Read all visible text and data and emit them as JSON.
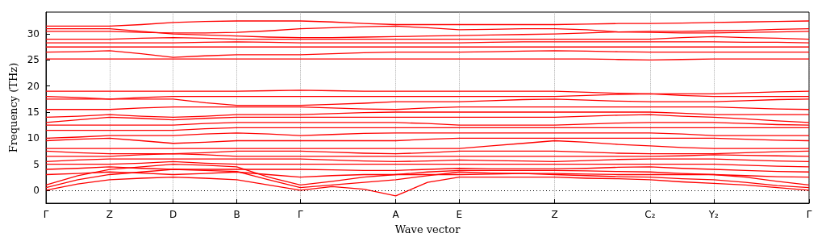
{
  "chart_data": {
    "type": "line",
    "xlabel": "Wave vector",
    "ylabel": "Frequency (THz)",
    "categories": [
      "Γ",
      null,
      "Z",
      null,
      "D",
      null,
      "B",
      null,
      "Γ",
      null,
      null,
      "A",
      null,
      "E",
      null,
      null,
      "Z",
      null,
      null,
      "C₂",
      null,
      "Y₂",
      null,
      null,
      "Γ"
    ],
    "ylim": [
      -2.5,
      34.2
    ],
    "yticks": [
      0,
      5,
      10,
      15,
      20,
      25,
      30
    ],
    "grid": "x",
    "marker": "none",
    "line_style": "solid",
    "ref_lines": [
      {
        "axis": "y",
        "value": 0,
        "color": "#000000",
        "line_style": "dotted"
      }
    ],
    "series": [
      {
        "color": "#ff0000",
        "values": [
          0,
          1.2,
          2,
          2.3,
          2.5,
          2.3,
          2,
          1,
          0,
          0.7,
          0.2,
          -1.1,
          1.5,
          2.5,
          2.5,
          2.5,
          2.5,
          2.3,
          2.2,
          2,
          1.6,
          1.3,
          1,
          0.5,
          0
        ]
      },
      {
        "color": "#ff0000",
        "values": [
          0.5,
          2,
          3,
          3.5,
          4,
          3.8,
          3.6,
          2,
          0.5,
          1,
          1.5,
          2,
          2.8,
          3.5,
          3.3,
          3.2,
          3,
          2.8,
          2.6,
          2.5,
          2.2,
          2,
          1.5,
          0.9,
          0.5
        ]
      },
      {
        "color": "#ff0000",
        "values": [
          1,
          2.8,
          4,
          4.5,
          5,
          4.8,
          4.5,
          2.5,
          1,
          1.7,
          2.5,
          3,
          3.5,
          3.8,
          3.8,
          3.8,
          3.8,
          3.7,
          3.6,
          3.5,
          3.2,
          3,
          2.5,
          1.7,
          1
        ]
      },
      {
        "color": "#ff0000",
        "values": [
          3,
          3.2,
          3.5,
          3.3,
          3,
          3.2,
          3.5,
          3,
          2.5,
          2.8,
          3,
          3,
          3,
          3,
          3.1,
          3.2,
          3.2,
          3.1,
          3,
          3,
          3,
          3,
          2.8,
          2.6,
          2.5
        ]
      },
      {
        "color": "#ff0000",
        "values": [
          4,
          4.2,
          4.5,
          4.2,
          4,
          4,
          4,
          4,
          4,
          3.9,
          3.8,
          3.8,
          4,
          4.2,
          4.1,
          4.1,
          4.1,
          4.2,
          4.4,
          4.5,
          4.2,
          4,
          3.8,
          3.6,
          3.5
        ]
      },
      {
        "color": "#ff0000",
        "values": [
          5,
          5,
          5,
          5.2,
          5.5,
          5.2,
          5,
          5,
          5,
          5,
          5,
          5,
          5,
          5,
          5,
          5,
          5,
          5,
          5,
          5,
          5,
          5,
          4.8,
          4.6,
          4.5
        ]
      },
      {
        "color": "#ff0000",
        "values": [
          5.5,
          5.8,
          6,
          6,
          6,
          6,
          6,
          6,
          6,
          5.8,
          5.6,
          5.5,
          5.6,
          5.8,
          5.7,
          5.6,
          5.5,
          5.7,
          5.9,
          6,
          6,
          6,
          5.8,
          5.6,
          5.5
        ]
      },
      {
        "color": "#ff0000",
        "values": [
          6.5,
          6.5,
          6.5,
          6.8,
          7,
          6.8,
          6.5,
          6.5,
          6.5,
          6.5,
          6.5,
          6.5,
          6.5,
          6.5,
          6.5,
          6.5,
          6.5,
          6.5,
          6.5,
          6.5,
          6.6,
          6.8,
          6.7,
          6.6,
          6.5
        ]
      },
      {
        "color": "#ff0000",
        "values": [
          7.5,
          7.2,
          7,
          7,
          7,
          7.2,
          7.5,
          7.5,
          7.5,
          7.3,
          7.1,
          7,
          7.2,
          7.5,
          7.5,
          7.5,
          7.5,
          7.3,
          7.1,
          7,
          7,
          7,
          7.2,
          7.4,
          7.5
        ]
      },
      {
        "color": "#ff0000",
        "values": [
          8,
          8,
          8,
          8,
          8,
          8,
          8,
          8,
          8,
          8,
          8,
          8,
          8,
          8,
          8.5,
          9,
          9.5,
          9.2,
          8.8,
          8.5,
          8.2,
          8,
          8,
          8,
          8
        ]
      },
      {
        "color": "#ff0000",
        "values": [
          9.5,
          9.8,
          10,
          9.5,
          9,
          9.2,
          9.5,
          9.5,
          9.5,
          9.5,
          9.5,
          9.5,
          9.8,
          10,
          10,
          10,
          10,
          10,
          10,
          10,
          10,
          10,
          9.8,
          9.6,
          9.5
        ]
      },
      {
        "color": "#ff0000",
        "values": [
          10,
          10.2,
          10.5,
          10.5,
          10.5,
          10.8,
          11,
          10.8,
          10.5,
          10.7,
          10.9,
          11,
          11,
          11,
          11,
          11,
          11,
          11,
          11,
          11,
          10.8,
          10.5,
          10.5,
          10.5,
          10.5
        ]
      },
      {
        "color": "#ff0000",
        "values": [
          11.5,
          11.5,
          11.5,
          11.5,
          11.5,
          11.8,
          12,
          12,
          12,
          12,
          12,
          12,
          12,
          12,
          12,
          12,
          12,
          12,
          12,
          12,
          12,
          12,
          12,
          12,
          12
        ]
      },
      {
        "color": "#ff0000",
        "values": [
          12.5,
          12.5,
          12.5,
          12.5,
          12.5,
          12.8,
          13,
          13,
          13,
          13,
          13,
          13,
          12.8,
          12.5,
          12.5,
          12.5,
          12.5,
          12.7,
          12.9,
          13,
          13,
          13,
          12.8,
          12.6,
          12.5
        ]
      },
      {
        "color": "#ff0000",
        "values": [
          13,
          13.5,
          14,
          13.8,
          13.5,
          13.8,
          14,
          14,
          14,
          14,
          14,
          14,
          14,
          14,
          14,
          14,
          14,
          14.2,
          14.4,
          14.5,
          14.2,
          14,
          13.7,
          13.3,
          13
        ]
      },
      {
        "color": "#ff0000",
        "values": [
          14,
          14.2,
          14.5,
          14.2,
          14,
          14.2,
          14.5,
          14.5,
          14.5,
          14.7,
          14.9,
          15,
          15,
          15,
          15,
          15,
          15,
          15,
          15,
          15,
          14.8,
          14.5,
          14.5,
          14.5,
          14.5
        ]
      },
      {
        "color": "#ff0000",
        "values": [
          15.5,
          15.5,
          15.5,
          15.8,
          16,
          16,
          16,
          16,
          16,
          15.8,
          15.6,
          15.5,
          15.8,
          16,
          16,
          16,
          16,
          16,
          16,
          16,
          16,
          16,
          15.8,
          15.6,
          15.5
        ]
      },
      {
        "color": "#ff0000",
        "values": [
          17.5,
          17.5,
          17.5,
          17.5,
          17.5,
          16.8,
          16.3,
          16.3,
          16.3,
          16.5,
          16.7,
          17,
          17,
          17,
          17.2,
          17.4,
          17.5,
          17.3,
          17.1,
          17,
          17,
          17,
          17.2,
          17.4,
          17.5
        ]
      },
      {
        "color": "#ff0000",
        "values": [
          18,
          17.8,
          17.5,
          17.8,
          18,
          18,
          18,
          18,
          18,
          18,
          18,
          18,
          18,
          18,
          18,
          18,
          18,
          18.2,
          18.4,
          18.5,
          18.2,
          18,
          18,
          18,
          18
        ]
      },
      {
        "color": "#ff0000",
        "values": [
          19,
          19,
          19,
          19,
          19,
          19,
          19,
          19.1,
          19.2,
          19.1,
          19,
          19,
          19,
          19,
          19,
          19,
          19,
          18.8,
          18.6,
          18.5,
          18.5,
          18.5,
          18.7,
          18.9,
          19
        ]
      },
      {
        "color": "#ff0000",
        "values": [
          25.2,
          25.2,
          25.2,
          25.2,
          25.2,
          25.2,
          25.2,
          25.2,
          25.2,
          25.2,
          25.2,
          25.2,
          25.2,
          25.2,
          25.2,
          25.2,
          25.2,
          25.2,
          25.1,
          25,
          25.1,
          25.2,
          25.2,
          25.2,
          25.2
        ]
      },
      {
        "color": "#ff0000",
        "values": [
          26.5,
          26.6,
          26.8,
          26.2,
          25.5,
          25.8,
          26,
          26,
          26,
          26.2,
          26.4,
          26.5,
          26.5,
          26.5,
          26.6,
          26.7,
          26.8,
          26.7,
          26.6,
          26.5,
          26.5,
          26.5,
          26.5,
          26.5,
          26.5
        ]
      },
      {
        "color": "#ff0000",
        "values": [
          27.5,
          27.5,
          27.5,
          27.5,
          27.5,
          27.5,
          27.5,
          27.5,
          27.5,
          27.5,
          27.5,
          27.5,
          27.5,
          27.5,
          27.5,
          27.5,
          27.5,
          27.5,
          27.5,
          27.5,
          27.5,
          27.5,
          27.5,
          27.5,
          27.5
        ]
      },
      {
        "color": "#ff0000",
        "values": [
          28.3,
          28.3,
          28.3,
          28.3,
          28.3,
          28.4,
          28.5,
          28.4,
          28.3,
          28.3,
          28.3,
          28.3,
          28.3,
          28.3,
          28.4,
          28.5,
          28.5,
          28.5,
          28.5,
          28.5,
          28.5,
          28.5,
          28.4,
          28.4,
          28.3
        ]
      },
      {
        "color": "#ff0000",
        "values": [
          29,
          29,
          29,
          29.2,
          29.3,
          29.2,
          29,
          29,
          29,
          29,
          29,
          29,
          29,
          29,
          29,
          29,
          29,
          29,
          29,
          29,
          29.3,
          29.5,
          29.3,
          29.2,
          29
        ]
      },
      {
        "color": "#ff0000",
        "values": [
          30.5,
          30.5,
          30.5,
          30.3,
          30.2,
          30.2,
          30.3,
          30.6,
          31,
          31.2,
          31.4,
          31.5,
          31.2,
          30.8,
          30.9,
          31,
          31,
          30.8,
          30.4,
          30.3,
          30.2,
          30.2,
          30.3,
          30.4,
          30.5
        ]
      },
      {
        "color": "#ff0000",
        "values": [
          31.5,
          31.5,
          31.5,
          31.8,
          32.2,
          32.4,
          32.5,
          32.5,
          32.5,
          32.3,
          32,
          31.8,
          31.8,
          31.8,
          31.8,
          31.8,
          31.8,
          31.9,
          32,
          32,
          32.1,
          32.2,
          32.3,
          32.4,
          32.5
        ]
      },
      {
        "color": "#ff0000",
        "values": [
          31,
          31,
          31,
          30.5,
          30,
          29.8,
          29.6,
          29.4,
          29.3,
          29.3,
          29.4,
          29.5,
          29.6,
          29.7,
          29.8,
          29.9,
          30,
          30.2,
          30.4,
          30.5,
          30.5,
          30.6,
          30.7,
          30.9,
          31
        ]
      }
    ]
  }
}
